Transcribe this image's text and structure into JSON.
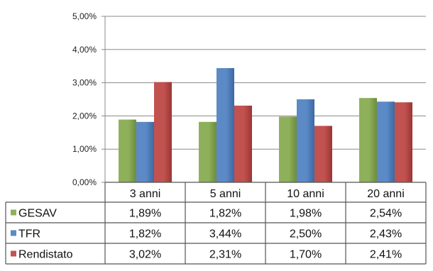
{
  "chart_data": {
    "type": "bar",
    "categories": [
      "3 anni",
      "5 anni",
      "10 anni",
      "20 anni"
    ],
    "series": [
      {
        "name": "GESAV",
        "values": [
          1.89,
          1.82,
          1.98,
          2.54
        ],
        "labels": [
          "1,89%",
          "1,82%",
          "1,98%",
          "2,54%"
        ],
        "color": "#8fb05a",
        "color_dark": "#6d8c3e"
      },
      {
        "name": "TFR",
        "values": [
          1.82,
          3.44,
          2.5,
          2.43
        ],
        "labels": [
          "1,82%",
          "3,44%",
          "2,50%",
          "2,43%"
        ],
        "color": "#5b8ac6",
        "color_dark": "#3c68a3"
      },
      {
        "name": "Rendistato",
        "values": [
          3.02,
          2.31,
          1.7,
          2.41
        ],
        "labels": [
          "3,02%",
          "2,31%",
          "1,70%",
          "2,41%"
        ],
        "color": "#c25250",
        "color_dark": "#9a3634"
      }
    ],
    "yticks": [
      "0,00%",
      "1,00%",
      "2,00%",
      "3,00%",
      "4,00%",
      "5,00%"
    ],
    "ylim": [
      0,
      5
    ],
    "grid": true,
    "legend": "data-table",
    "title": "",
    "xlabel": "",
    "ylabel": ""
  }
}
